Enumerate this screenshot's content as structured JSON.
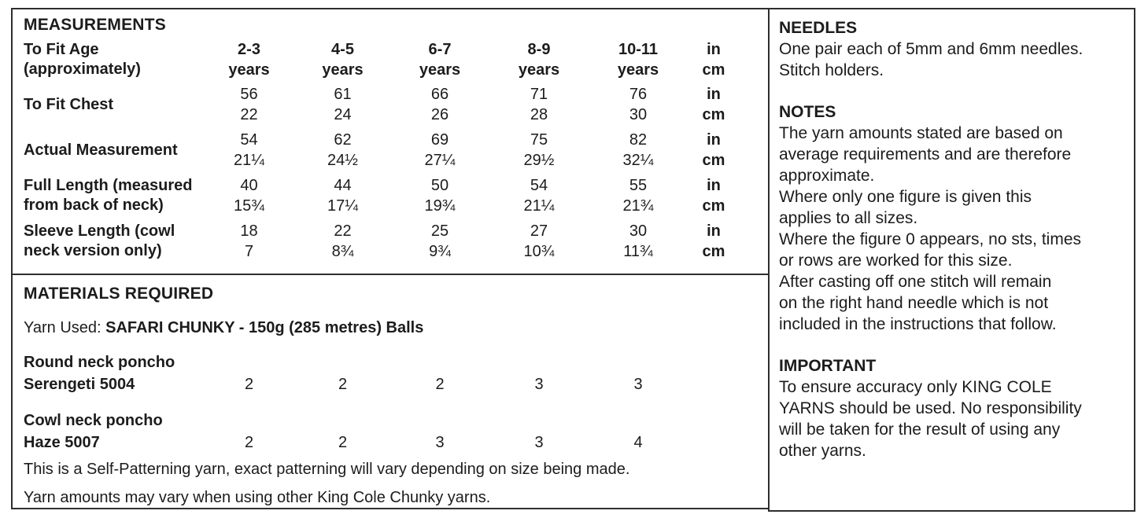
{
  "measurements": {
    "title": "MEASUREMENTS",
    "units": {
      "top": "in",
      "bottom": "cm"
    },
    "header": {
      "label_line1": "To Fit Age",
      "label_line2": "(approximately)",
      "sizes": [
        "2-3",
        "4-5",
        "6-7",
        "8-9",
        "10-11"
      ],
      "size_suffix": "years"
    },
    "rows": [
      {
        "label_line1": "To Fit Chest",
        "label_line2": "",
        "top": [
          "56",
          "61",
          "66",
          "71",
          "76"
        ],
        "bottom": [
          "22",
          "24",
          "26",
          "28",
          "30"
        ]
      },
      {
        "label_line1": "Actual Measurement",
        "label_line2": "",
        "top": [
          "54",
          "62",
          "69",
          "75",
          "82"
        ],
        "bottom": [
          "21¼",
          "24½",
          "27¼",
          "29½",
          "32¼"
        ]
      },
      {
        "label_line1": "Full Length (measured",
        "label_line2": "from back of neck)",
        "top": [
          "40",
          "44",
          "50",
          "54",
          "55"
        ],
        "bottom": [
          "15¾",
          "17¼",
          "19¾",
          "21¼",
          "21¾"
        ]
      },
      {
        "label_line1": "Sleeve Length (cowl",
        "label_line2": "neck version only)",
        "top": [
          "18",
          "22",
          "25",
          "27",
          "30"
        ],
        "bottom": [
          "7",
          "8¾",
          "9¾",
          "10¾",
          "11¾"
        ]
      }
    ]
  },
  "materials": {
    "title": "MATERIALS REQUIRED",
    "yarn_used_label": "Yarn Used:",
    "yarn_used_value": "SAFARI CHUNKY - 150g (285 metres) Balls",
    "yarns": [
      {
        "name_line1": "Round neck poncho",
        "name_line2": "Serengeti 5004",
        "values": [
          "2",
          "2",
          "2",
          "3",
          "3"
        ]
      },
      {
        "name_line1": "Cowl neck poncho",
        "name_line2": "Haze 5007",
        "values": [
          "2",
          "2",
          "3",
          "3",
          "4"
        ]
      }
    ],
    "note1": "This is a Self-Patterning yarn, exact patterning will vary depending on size being made.",
    "note2": "Yarn amounts may vary when using other King Cole Chunky yarns."
  },
  "sidebar": {
    "needles": {
      "title": "NEEDLES",
      "lines": [
        "One pair each of 5mm and 6mm needles.",
        "Stitch holders."
      ]
    },
    "notes": {
      "title": "NOTES",
      "lines": [
        "The yarn amounts stated are based on",
        "average requirements and are therefore",
        "approximate.",
        "Where only one figure is given this",
        "applies to all sizes.",
        "Where the figure 0 appears, no sts, times",
        "or rows are worked for this size.",
        "After casting off one stitch will remain",
        "on the right hand needle which is not",
        "included in the instructions that follow."
      ]
    },
    "important": {
      "title": "IMPORTANT",
      "lines": [
        "To ensure accuracy only KING COLE",
        "YARNS should be used. No responsibility",
        "will be taken for the result of using any",
        "other yarns."
      ]
    }
  }
}
